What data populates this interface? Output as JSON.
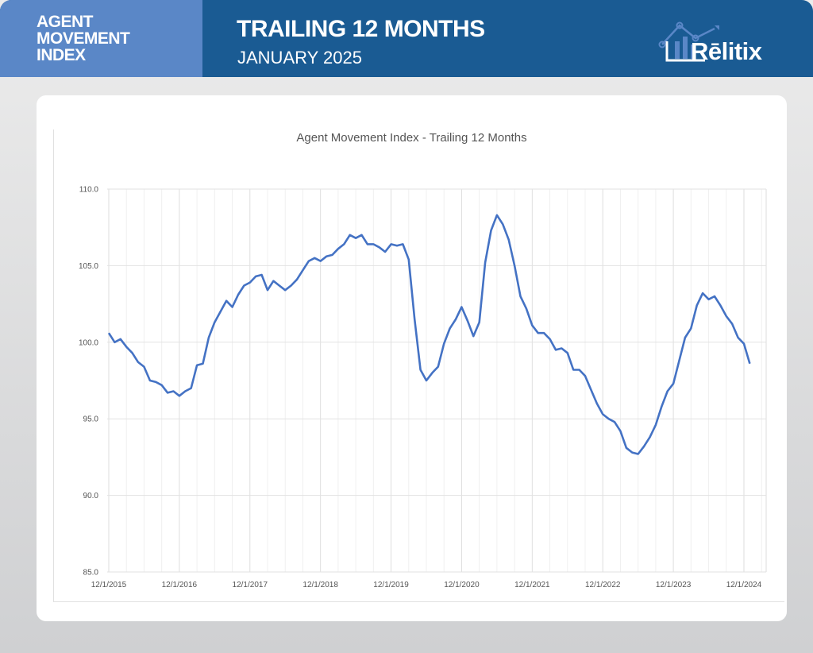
{
  "header": {
    "section_label": [
      "AGENT",
      "MOVEMENT",
      "INDEX"
    ],
    "title": "TRAILING 12 MONTHS",
    "subtitle": "JANUARY 2025",
    "logo_text": "Rēlitix"
  },
  "colors": {
    "line": "#4472c4",
    "header_dark": "#1a5b93",
    "header_light": "#5a87c7"
  },
  "chart_data": {
    "type": "line",
    "title": "Agent Movement Index - Trailing 12 Months",
    "xlabel": "",
    "ylabel": "",
    "x_start": "12/1/2015",
    "x_interval": "monthly",
    "ylim": [
      85,
      110
    ],
    "y_ticks": [
      "85.0",
      "90.0",
      "95.0",
      "100.0",
      "105.0",
      "110.0"
    ],
    "x_ticks": [
      "12/1/2015",
      "12/1/2016",
      "12/1/2017",
      "12/1/2018",
      "12/1/2019",
      "12/1/2020",
      "12/1/2021",
      "12/1/2022",
      "12/1/2023",
      "12/1/2024"
    ],
    "grid": true,
    "legend": "none",
    "series": [
      {
        "name": "Agent Movement Index",
        "values": [
          100.6,
          100.0,
          100.2,
          99.7,
          99.3,
          98.7,
          98.4,
          97.5,
          97.4,
          97.2,
          96.7,
          96.8,
          96.5,
          96.8,
          97.0,
          98.5,
          98.6,
          100.3,
          101.3,
          102.0,
          102.7,
          102.3,
          103.1,
          103.7,
          103.9,
          104.3,
          104.4,
          103.4,
          104.0,
          103.7,
          103.4,
          103.7,
          104.1,
          104.7,
          105.3,
          105.5,
          105.3,
          105.6,
          105.7,
          106.1,
          106.4,
          107.0,
          106.8,
          107.0,
          106.4,
          106.4,
          106.2,
          105.9,
          106.4,
          106.3,
          106.4,
          105.4,
          101.5,
          98.2,
          97.5,
          98.0,
          98.4,
          99.9,
          100.9,
          101.5,
          102.3,
          101.4,
          100.4,
          101.3,
          105.2,
          107.3,
          108.3,
          107.7,
          106.7,
          105.0,
          103.0,
          102.2,
          101.1,
          100.6,
          100.6,
          100.2,
          99.5,
          99.6,
          99.3,
          98.2,
          98.2,
          97.8,
          96.9,
          96.0,
          95.3,
          95.0,
          94.8,
          94.2,
          93.1,
          92.8,
          92.7,
          93.2,
          93.8,
          94.6,
          95.8,
          96.8,
          97.3,
          98.8,
          100.3,
          100.9,
          102.4,
          103.2,
          102.8,
          103.0,
          102.4,
          101.7,
          101.2,
          100.3,
          99.9,
          98.6
        ]
      }
    ]
  }
}
